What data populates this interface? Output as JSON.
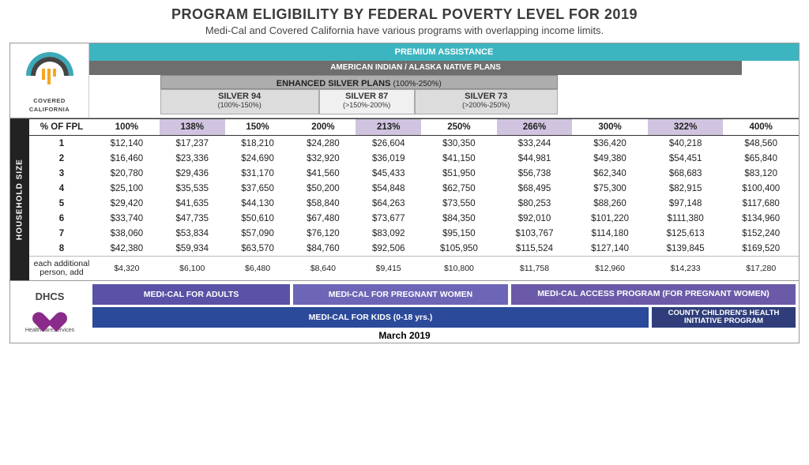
{
  "title": "PROGRAM ELIGIBILITY BY FEDERAL POVERTY LEVEL FOR 2019",
  "subtitle": "Medi-Cal and Covered California have various programs with overlapping income limits.",
  "logo": {
    "line1": "COVERED",
    "line2": "CALIFORNIA"
  },
  "bands": {
    "premium": "PREMIUM ASSISTANCE",
    "aian": "AMERICAN INDIAN / ALASKA NATIVE PLANS",
    "enhanced": "ENHANCED SILVER PLANS",
    "enhanced_sub": "(100%-250%)",
    "s94": "SILVER 94",
    "s94_sub": "(100%-150%)",
    "s87": "SILVER 87",
    "s87_sub": "(>150%-200%)",
    "s73": "SILVER 73",
    "s73_sub": "(>200%-250%)"
  },
  "hh_label": "HOUSEHOLD SIZE",
  "header": {
    "lbl": "% OF FPL",
    "cols": [
      "100%",
      "138%",
      "150%",
      "200%",
      "213%",
      "250%",
      "266%",
      "300%",
      "322%",
      "400%"
    ],
    "highlight": [
      false,
      true,
      false,
      false,
      true,
      false,
      true,
      false,
      true,
      false
    ]
  },
  "rows": [
    {
      "lbl": "1",
      "v": [
        "$12,140",
        "$17,237",
        "$18,210",
        "$24,280",
        "$26,604",
        "$30,350",
        "$33,244",
        "$36,420",
        "$40,218",
        "$48,560"
      ]
    },
    {
      "lbl": "2",
      "v": [
        "$16,460",
        "$23,336",
        "$24,690",
        "$32,920",
        "$36,019",
        "$41,150",
        "$44,981",
        "$49,380",
        "$54,451",
        "$65,840"
      ]
    },
    {
      "lbl": "3",
      "v": [
        "$20,780",
        "$29,436",
        "$31,170",
        "$41,560",
        "$45,433",
        "$51,950",
        "$56,738",
        "$62,340",
        "$68,683",
        "$83,120"
      ]
    },
    {
      "lbl": "4",
      "v": [
        "$25,100",
        "$35,535",
        "$37,650",
        "$50,200",
        "$54,848",
        "$62,750",
        "$68,495",
        "$75,300",
        "$82,915",
        "$100,400"
      ]
    },
    {
      "lbl": "5",
      "v": [
        "$29,420",
        "$41,635",
        "$44,130",
        "$58,840",
        "$64,263",
        "$73,550",
        "$80,253",
        "$88,260",
        "$97,148",
        "$117,680"
      ]
    },
    {
      "lbl": "6",
      "v": [
        "$33,740",
        "$47,735",
        "$50,610",
        "$67,480",
        "$73,677",
        "$84,350",
        "$92,010",
        "$101,220",
        "$111,380",
        "$134,960"
      ]
    },
    {
      "lbl": "7",
      "v": [
        "$38,060",
        "$53,834",
        "$57,090",
        "$76,120",
        "$83,092",
        "$95,150",
        "$103,767",
        "$114,180",
        "$125,613",
        "$152,240"
      ]
    },
    {
      "lbl": "8",
      "v": [
        "$42,380",
        "$59,934",
        "$63,570",
        "$84,760",
        "$92,506",
        "$105,950",
        "$115,524",
        "$127,140",
        "$139,845",
        "$169,520"
      ]
    }
  ],
  "addl": {
    "lbl": "each additional person, add",
    "v": [
      "$4,320",
      "$6,100",
      "$6,480",
      "$8,640",
      "$9,415",
      "$10,800",
      "$11,758",
      "$12,960",
      "$14,233",
      "$17,280"
    ]
  },
  "dhcs": {
    "title": "DHCS",
    "sub": "HealthCareServices"
  },
  "bottom": {
    "adults": "MEDI-CAL FOR ADULTS",
    "preg": "MEDI-CAL FOR PREGNANT WOMEN",
    "access": "MEDI-CAL ACCESS PROGRAM (FOR PREGNANT WOMEN)",
    "kids": "MEDI-CAL FOR KIDS (0-18 yrs.)",
    "cchip": "COUNTY CHILDREN'S HEALTH INITIATIVE PROGRAM"
  },
  "date": "March 2019"
}
